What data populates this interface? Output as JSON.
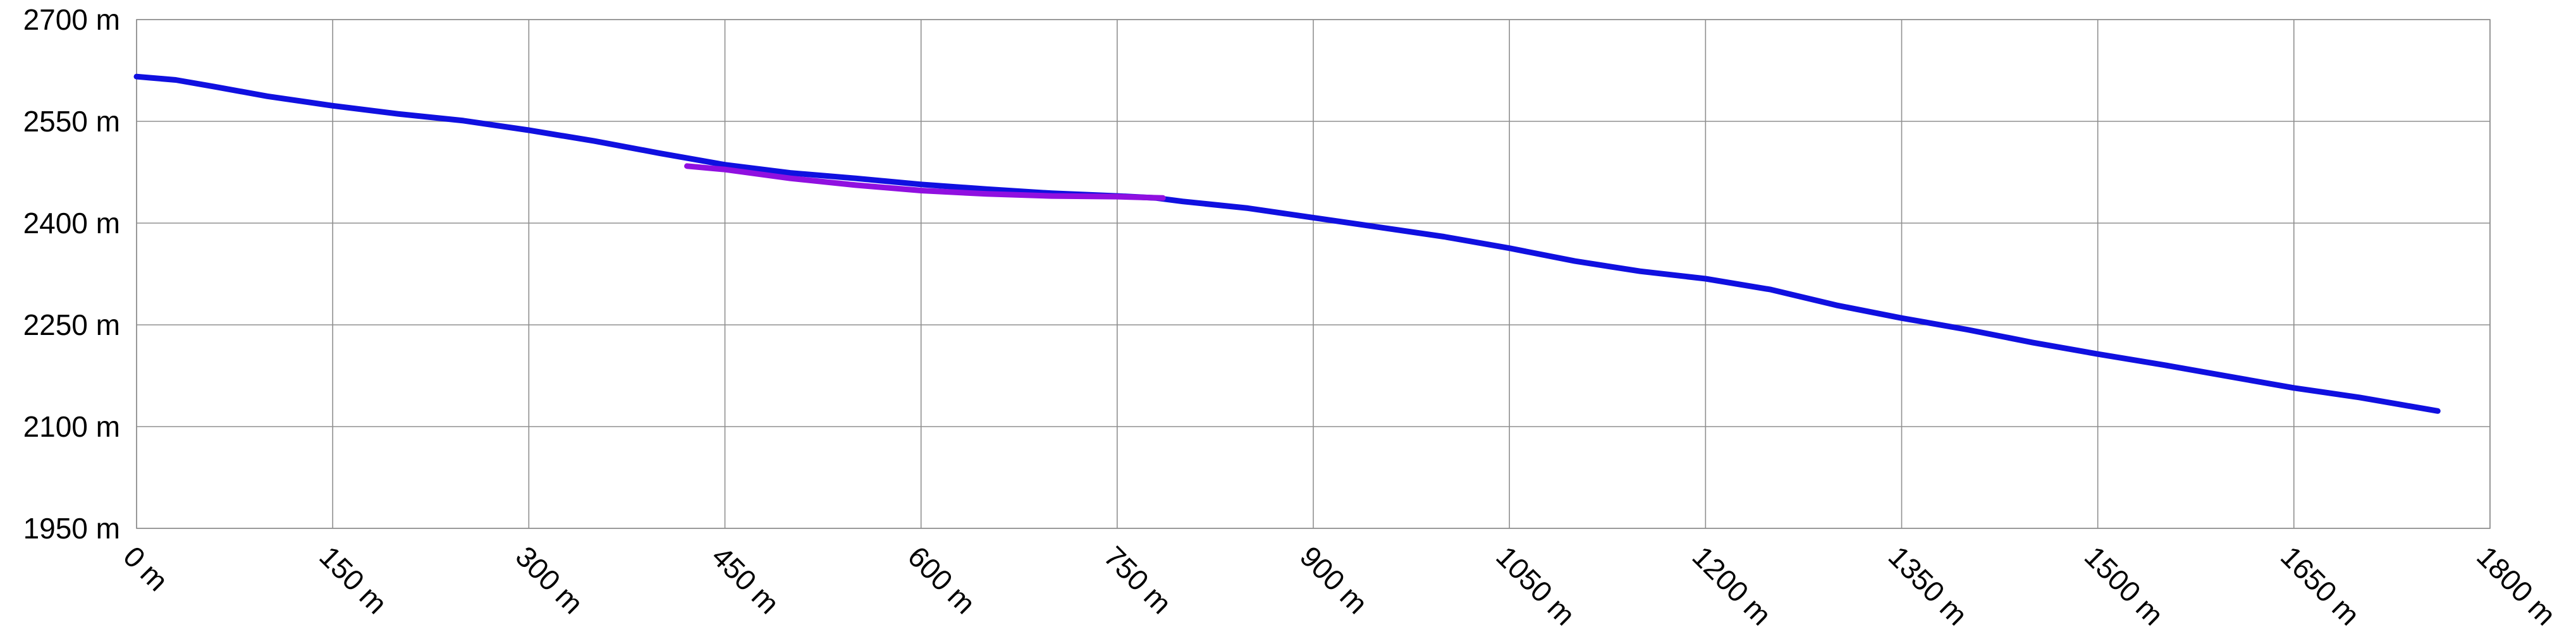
{
  "chart_data": {
    "type": "line",
    "title": "",
    "xlabel": "",
    "ylabel": "",
    "unit": "m",
    "xlim": [
      0,
      1800
    ],
    "ylim": [
      1950,
      2700
    ],
    "grid": true,
    "x_ticks": [
      {
        "value": 0,
        "label": "0 m"
      },
      {
        "value": 150,
        "label": "150 m"
      },
      {
        "value": 300,
        "label": "300 m"
      },
      {
        "value": 450,
        "label": "450 m"
      },
      {
        "value": 600,
        "label": "600 m"
      },
      {
        "value": 750,
        "label": "750 m"
      },
      {
        "value": 900,
        "label": "900 m"
      },
      {
        "value": 1050,
        "label": "1050 m"
      },
      {
        "value": 1200,
        "label": "1200 m"
      },
      {
        "value": 1350,
        "label": "1350 m"
      },
      {
        "value": 1500,
        "label": "1500 m"
      },
      {
        "value": 1650,
        "label": "1650 m"
      },
      {
        "value": 1800,
        "label": "1800 m"
      }
    ],
    "y_ticks": [
      {
        "value": 1950,
        "label": "1950 m"
      },
      {
        "value": 2100,
        "label": "2100 m"
      },
      {
        "value": 2250,
        "label": "2250 m"
      },
      {
        "value": 2400,
        "label": "2400 m"
      },
      {
        "value": 2550,
        "label": "2550 m"
      },
      {
        "value": 2700,
        "label": "2700 m"
      }
    ],
    "series": [
      {
        "color": "#1010e0",
        "points": [
          [
            0,
            2616
          ],
          [
            30,
            2611
          ],
          [
            60,
            2601
          ],
          [
            100,
            2587
          ],
          [
            150,
            2573
          ],
          [
            200,
            2561
          ],
          [
            250,
            2551
          ],
          [
            300,
            2537
          ],
          [
            350,
            2521
          ],
          [
            400,
            2503
          ],
          [
            450,
            2486
          ],
          [
            500,
            2474
          ],
          [
            550,
            2466
          ],
          [
            600,
            2457
          ],
          [
            650,
            2450
          ],
          [
            700,
            2444
          ],
          [
            750,
            2440
          ],
          [
            780,
            2437
          ],
          [
            800,
            2432
          ],
          [
            850,
            2422
          ],
          [
            900,
            2408
          ],
          [
            950,
            2394
          ],
          [
            1000,
            2380
          ],
          [
            1050,
            2363
          ],
          [
            1100,
            2344
          ],
          [
            1150,
            2329
          ],
          [
            1200,
            2318
          ],
          [
            1250,
            2302
          ],
          [
            1300,
            2279
          ],
          [
            1350,
            2260
          ],
          [
            1400,
            2243
          ],
          [
            1450,
            2224
          ],
          [
            1500,
            2207
          ],
          [
            1550,
            2191
          ],
          [
            1600,
            2174
          ],
          [
            1650,
            2157
          ],
          [
            1700,
            2143
          ],
          [
            1730,
            2133
          ],
          [
            1760,
            2123
          ]
        ]
      },
      {
        "color": "#9010e0",
        "points": [
          [
            421,
            2484
          ],
          [
            450,
            2479
          ],
          [
            500,
            2466
          ],
          [
            550,
            2456
          ],
          [
            600,
            2448
          ],
          [
            650,
            2443
          ],
          [
            700,
            2440
          ],
          [
            750,
            2439
          ],
          [
            785,
            2437
          ]
        ]
      }
    ]
  }
}
